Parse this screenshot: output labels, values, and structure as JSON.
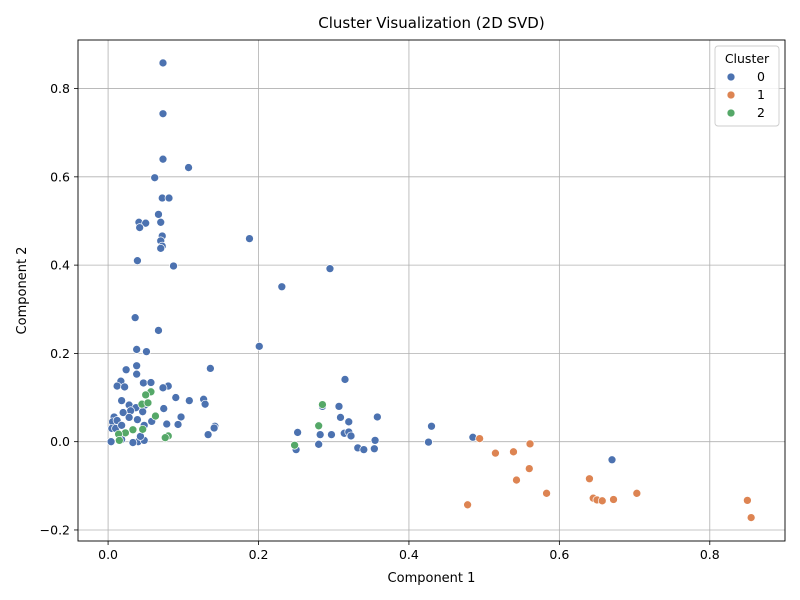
{
  "chart_data": {
    "type": "scatter",
    "title": "Cluster Visualization (2D SVD)",
    "xlabel": "Component 1",
    "ylabel": "Component 2",
    "xlim": [
      -0.04,
      0.9
    ],
    "ylim": [
      -0.225,
      0.91
    ],
    "xticks": [
      0.0,
      0.2,
      0.4,
      0.6,
      0.8
    ],
    "xtick_labels": [
      "0.0",
      "0.2",
      "0.4",
      "0.6",
      "0.8"
    ],
    "yticks": [
      -0.2,
      0.0,
      0.2,
      0.4,
      0.6,
      0.8
    ],
    "ytick_labels": [
      "−0.2",
      "0.0",
      "0.2",
      "0.4",
      "0.6",
      "0.8"
    ],
    "grid": true,
    "legend": {
      "title": "Cluster",
      "placement": "top-right"
    },
    "series": [
      {
        "name": "0",
        "color": "#4c72b0",
        "points": [
          [
            0.073,
            0.858
          ],
          [
            0.073,
            0.743
          ],
          [
            0.073,
            0.64
          ],
          [
            0.107,
            0.621
          ],
          [
            0.062,
            0.598
          ],
          [
            0.072,
            0.552
          ],
          [
            0.081,
            0.552
          ],
          [
            0.067,
            0.515
          ],
          [
            0.041,
            0.497
          ],
          [
            0.05,
            0.495
          ],
          [
            0.07,
            0.497
          ],
          [
            0.042,
            0.485
          ],
          [
            0.072,
            0.466
          ],
          [
            0.07,
            0.455
          ],
          [
            0.072,
            0.443
          ],
          [
            0.07,
            0.438
          ],
          [
            0.188,
            0.46
          ],
          [
            0.039,
            0.41
          ],
          [
            0.087,
            0.398
          ],
          [
            0.295,
            0.392
          ],
          [
            0.231,
            0.351
          ],
          [
            0.036,
            0.281
          ],
          [
            0.067,
            0.252
          ],
          [
            0.201,
            0.216
          ],
          [
            0.038,
            0.209
          ],
          [
            0.051,
            0.204
          ],
          [
            0.038,
            0.172
          ],
          [
            0.136,
            0.166
          ],
          [
            0.024,
            0.163
          ],
          [
            0.038,
            0.153
          ],
          [
            0.315,
            0.141
          ],
          [
            0.017,
            0.137
          ],
          [
            0.012,
            0.126
          ],
          [
            0.022,
            0.124
          ],
          [
            0.047,
            0.133
          ],
          [
            0.057,
            0.134
          ],
          [
            0.08,
            0.126
          ],
          [
            0.073,
            0.122
          ],
          [
            0.09,
            0.1
          ],
          [
            0.108,
            0.093
          ],
          [
            0.127,
            0.096
          ],
          [
            0.129,
            0.085
          ],
          [
            0.018,
            0.093
          ],
          [
            0.028,
            0.083
          ],
          [
            0.037,
            0.077
          ],
          [
            0.049,
            0.083
          ],
          [
            0.074,
            0.075
          ],
          [
            0.307,
            0.08
          ],
          [
            0.285,
            0.08
          ],
          [
            0.03,
            0.07
          ],
          [
            0.02,
            0.066
          ],
          [
            0.008,
            0.056
          ],
          [
            0.046,
            0.068
          ],
          [
            0.097,
            0.056
          ],
          [
            0.358,
            0.056
          ],
          [
            0.309,
            0.055
          ],
          [
            0.006,
            0.045
          ],
          [
            0.012,
            0.048
          ],
          [
            0.028,
            0.055
          ],
          [
            0.039,
            0.05
          ],
          [
            0.058,
            0.046
          ],
          [
            0.093,
            0.039
          ],
          [
            0.142,
            0.035
          ],
          [
            0.43,
            0.035
          ],
          [
            0.32,
            0.045
          ],
          [
            0.005,
            0.03
          ],
          [
            0.01,
            0.03
          ],
          [
            0.018,
            0.037
          ],
          [
            0.048,
            0.037
          ],
          [
            0.078,
            0.04
          ],
          [
            0.141,
            0.031
          ],
          [
            0.133,
            0.016
          ],
          [
            0.252,
            0.021
          ],
          [
            0.282,
            0.016
          ],
          [
            0.297,
            0.016
          ],
          [
            0.314,
            0.019
          ],
          [
            0.32,
            0.022
          ],
          [
            0.323,
            0.013
          ],
          [
            0.485,
            0.01
          ],
          [
            0.004,
            0.0
          ],
          [
            0.018,
            0.005
          ],
          [
            0.04,
            0.0
          ],
          [
            0.033,
            -0.002
          ],
          [
            0.048,
            0.003
          ],
          [
            0.043,
            0.012
          ],
          [
            0.355,
            0.003
          ],
          [
            0.426,
            -0.001
          ],
          [
            0.28,
            -0.006
          ],
          [
            0.332,
            -0.014
          ],
          [
            0.34,
            -0.018
          ],
          [
            0.354,
            -0.016
          ],
          [
            0.25,
            -0.018
          ],
          [
            0.67,
            -0.041
          ]
        ]
      },
      {
        "name": "1",
        "color": "#dd8452",
        "points": [
          [
            0.494,
            0.007
          ],
          [
            0.561,
            -0.005
          ],
          [
            0.539,
            -0.023
          ],
          [
            0.515,
            -0.026
          ],
          [
            0.56,
            -0.061
          ],
          [
            0.543,
            -0.087
          ],
          [
            0.64,
            -0.084
          ],
          [
            0.583,
            -0.117
          ],
          [
            0.703,
            -0.117
          ],
          [
            0.645,
            -0.128
          ],
          [
            0.65,
            -0.132
          ],
          [
            0.657,
            -0.134
          ],
          [
            0.672,
            -0.131
          ],
          [
            0.85,
            -0.133
          ],
          [
            0.478,
            -0.143
          ],
          [
            0.855,
            -0.172
          ]
        ]
      },
      {
        "name": "2",
        "color": "#55a868",
        "points": [
          [
            0.057,
            0.113
          ],
          [
            0.05,
            0.106
          ],
          [
            0.045,
            0.085
          ],
          [
            0.053,
            0.088
          ],
          [
            0.285,
            0.084
          ],
          [
            0.063,
            0.058
          ],
          [
            0.046,
            0.028
          ],
          [
            0.28,
            0.036
          ],
          [
            0.033,
            0.027
          ],
          [
            0.023,
            0.02
          ],
          [
            0.014,
            0.017
          ],
          [
            0.08,
            0.013
          ],
          [
            0.076,
            0.009
          ],
          [
            0.015,
            0.003
          ],
          [
            0.248,
            -0.008
          ]
        ]
      }
    ]
  }
}
